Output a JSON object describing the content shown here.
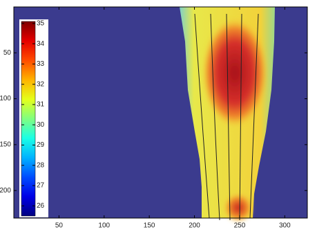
{
  "chart_data": {
    "type": "heatmap",
    "xlim": [
      0,
      325
    ],
    "xticks": [
      50,
      100,
      150,
      200,
      250,
      300
    ],
    "ylim": [
      230,
      0
    ],
    "yticks": [
      50,
      100,
      150,
      200
    ],
    "colorbar": {
      "colormap": "jet",
      "clim": [
        25.5,
        35.1
      ],
      "ticks": [
        26,
        27,
        28,
        29,
        30,
        31,
        32,
        33,
        34,
        35
      ]
    }
  }
}
